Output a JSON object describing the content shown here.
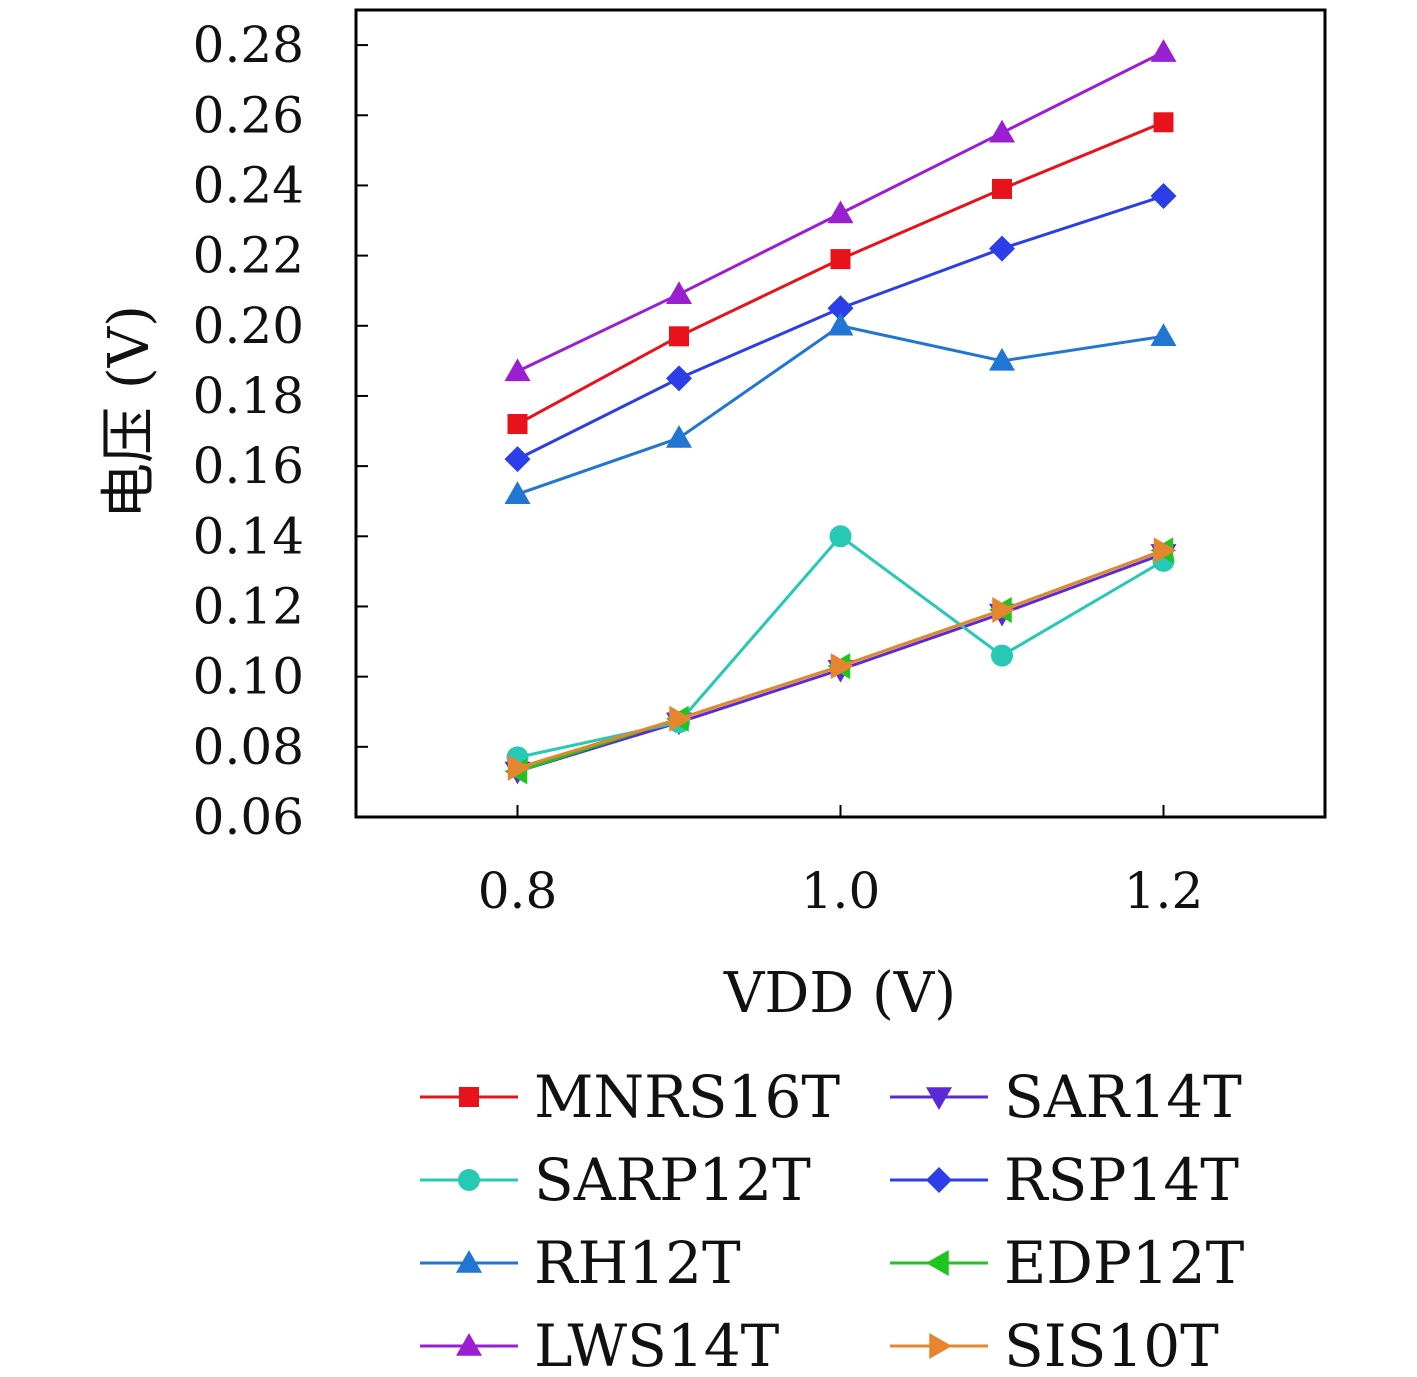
{
  "chart_data": {
    "type": "line",
    "title": "",
    "xlabel": "VDD (V)",
    "ylabel": "电压 (V)",
    "x": [
      0.8,
      0.9,
      1.0,
      1.1,
      1.2
    ],
    "xlim": [
      0.7,
      1.3
    ],
    "ylim": [
      0.06,
      0.29
    ],
    "xticks": [
      "0.8",
      "1.0",
      "1.2"
    ],
    "yticks": [
      "0.06",
      "0.08",
      "0.10",
      "0.12",
      "0.14",
      "0.16",
      "0.18",
      "0.20",
      "0.22",
      "0.24",
      "0.26",
      "0.28"
    ],
    "grid": false,
    "legend_placement": "bottom",
    "series": [
      {
        "name": "MNRS16T",
        "color": "#e8121a",
        "marker": "square",
        "values": [
          0.172,
          0.197,
          0.219,
          0.239,
          0.258
        ]
      },
      {
        "name": "SAR14T",
        "color": "#5b2ad6",
        "marker": "triangle-down",
        "values": [
          0.073,
          0.087,
          0.102,
          0.118,
          0.135
        ]
      },
      {
        "name": "SARP12T",
        "color": "#25c9b4",
        "marker": "circle",
        "values": [
          0.077,
          0.087,
          0.14,
          0.106,
          0.133
        ]
      },
      {
        "name": "RSP14T",
        "color": "#2c3ee8",
        "marker": "diamond",
        "values": [
          0.162,
          0.185,
          0.205,
          0.222,
          0.237
        ]
      },
      {
        "name": "RH12T",
        "color": "#2176d4",
        "marker": "triangle-up",
        "values": [
          0.152,
          0.168,
          0.2,
          0.19,
          0.197
        ]
      },
      {
        "name": "EDP12T",
        "color": "#1fc41f",
        "marker": "triangle-left",
        "values": [
          0.073,
          0.088,
          0.103,
          0.119,
          0.136
        ]
      },
      {
        "name": "LWS14T",
        "color": "#9a1fd0",
        "marker": "triangle-up",
        "values": [
          0.187,
          0.209,
          0.232,
          0.255,
          0.278
        ]
      },
      {
        "name": "SIS10T",
        "color": "#e5862e",
        "marker": "triangle-right",
        "values": [
          0.074,
          0.088,
          0.103,
          0.119,
          0.136
        ]
      }
    ]
  }
}
